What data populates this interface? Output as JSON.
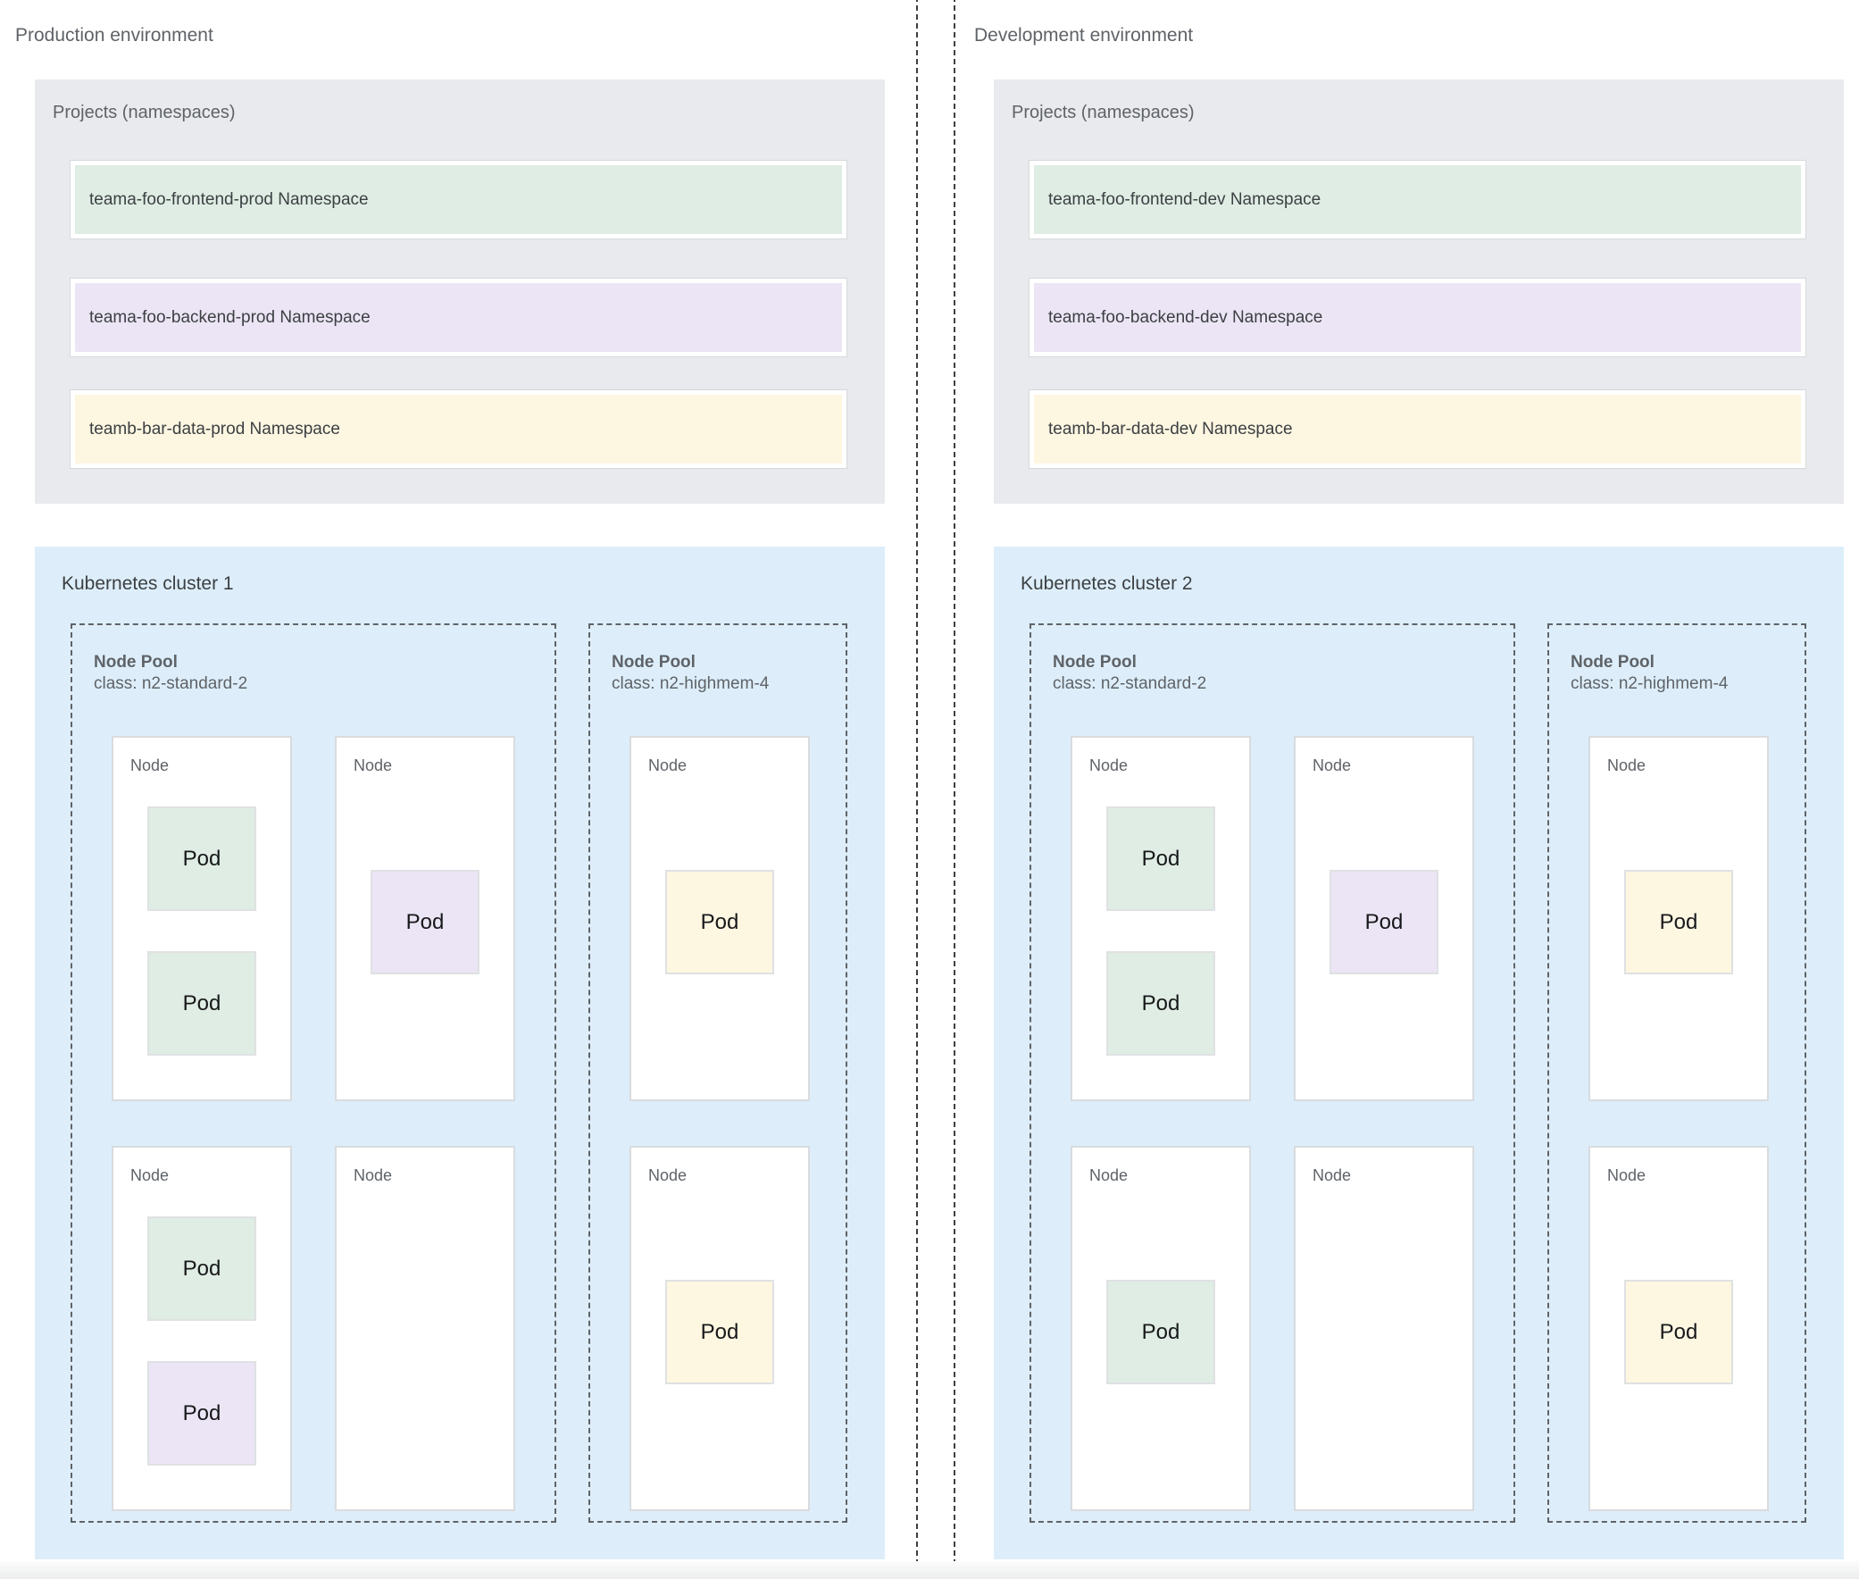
{
  "colors": {
    "green": "#dfede4",
    "purple": "#ece5f5",
    "yellow": "#fdf6e1",
    "cluster_background": "#ddeefa",
    "projects_background": "#e8eaed"
  },
  "panes": [
    {
      "title": "Production environment",
      "projects": {
        "label": "Projects (namespaces)",
        "namespaces": [
          {
            "label": "teama-foo-frontend-prod Namespace",
            "color": "green"
          },
          {
            "label": "teama-foo-backend-prod Namespace",
            "color": "purple"
          },
          {
            "label": "teamb-bar-data-prod Namespace",
            "color": "yellow"
          }
        ]
      },
      "cluster": {
        "title": "Kubernetes cluster 1",
        "node_pools": [
          {
            "name": "Node Pool",
            "class_label": "class: n2-standard-2",
            "nodes": [
              {
                "label": "Node",
                "pods": [
                  {
                    "label": "Pod",
                    "color": "green"
                  },
                  {
                    "label": "Pod",
                    "color": "green"
                  }
                ]
              },
              {
                "label": "Node",
                "pods": [
                  {
                    "label": "Pod",
                    "color": "purple"
                  }
                ]
              },
              {
                "label": "Node",
                "pods": [
                  {
                    "label": "Pod",
                    "color": "green"
                  },
                  {
                    "label": "Pod",
                    "color": "purple"
                  }
                ]
              },
              {
                "label": "Node",
                "pods": []
              }
            ]
          },
          {
            "name": "Node Pool",
            "class_label": "class: n2-highmem-4",
            "nodes": [
              {
                "label": "Node",
                "pods": [
                  {
                    "label": "Pod",
                    "color": "yellow"
                  }
                ]
              },
              {
                "label": "Node",
                "pods": [
                  {
                    "label": "Pod",
                    "color": "yellow"
                  }
                ]
              }
            ]
          }
        ]
      }
    },
    {
      "title": "Development environment",
      "projects": {
        "label": "Projects (namespaces)",
        "namespaces": [
          {
            "label": "teama-foo-frontend-dev Namespace",
            "color": "green"
          },
          {
            "label": "teama-foo-backend-dev Namespace",
            "color": "purple"
          },
          {
            "label": "teamb-bar-data-dev Namespace",
            "color": "yellow"
          }
        ]
      },
      "cluster": {
        "title": "Kubernetes cluster 2",
        "node_pools": [
          {
            "name": "Node Pool",
            "class_label": "class: n2-standard-2",
            "nodes": [
              {
                "label": "Node",
                "pods": [
                  {
                    "label": "Pod",
                    "color": "green"
                  },
                  {
                    "label": "Pod",
                    "color": "green"
                  }
                ]
              },
              {
                "label": "Node",
                "pods": [
                  {
                    "label": "Pod",
                    "color": "purple"
                  }
                ]
              },
              {
                "label": "Node",
                "pods": [
                  {
                    "label": "Pod",
                    "color": "green"
                  }
                ]
              },
              {
                "label": "Node",
                "pods": []
              }
            ]
          },
          {
            "name": "Node Pool",
            "class_label": "class: n2-highmem-4",
            "nodes": [
              {
                "label": "Node",
                "pods": [
                  {
                    "label": "Pod",
                    "color": "yellow"
                  }
                ]
              },
              {
                "label": "Node",
                "pods": [
                  {
                    "label": "Pod",
                    "color": "yellow"
                  }
                ]
              }
            ]
          }
        ]
      }
    }
  ]
}
